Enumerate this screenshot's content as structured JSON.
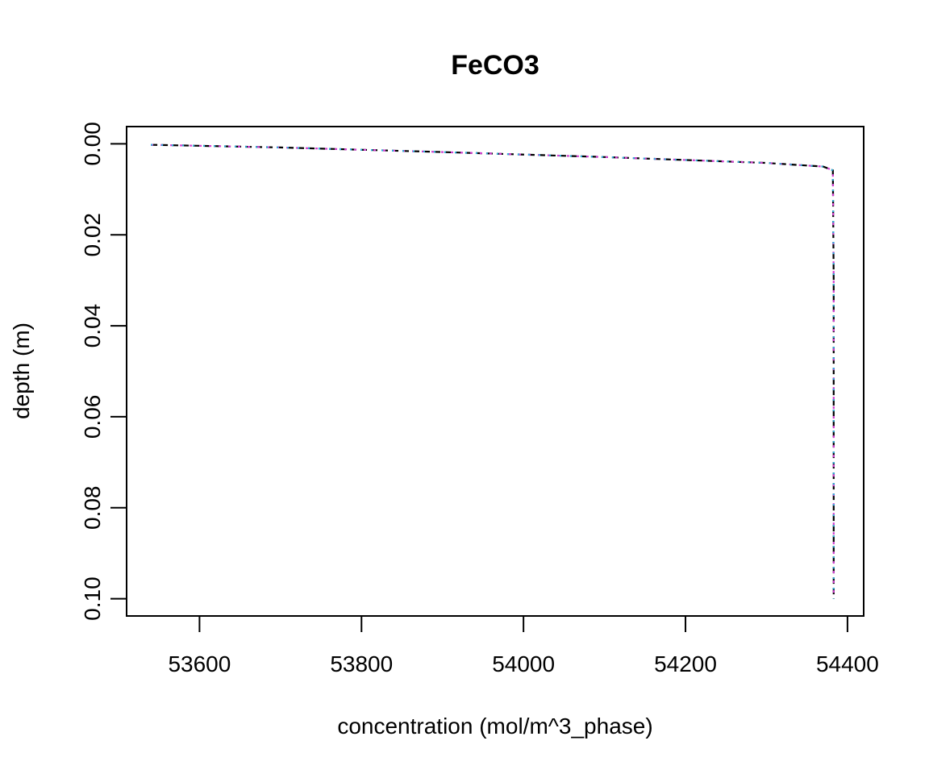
{
  "chart_data": {
    "type": "line",
    "title": "FeCO3",
    "xlabel": "concentration (mol/m^3_phase)",
    "ylabel": "depth (m)",
    "xlim": [
      53510,
      54420
    ],
    "ylim": [
      0.1038,
      -0.0038
    ],
    "y_reversed": true,
    "xticks": [
      53600,
      53800,
      54000,
      54200,
      54400
    ],
    "xtick_labels": [
      "53600",
      "53800",
      "54000",
      "54200",
      "54400"
    ],
    "yticks": [
      0.0,
      0.02,
      0.04,
      0.06,
      0.08,
      0.1
    ],
    "ytick_labels": [
      "0.00",
      "0.02",
      "0.04",
      "0.06",
      "0.08",
      "0.10"
    ],
    "grid": false,
    "series": [
      {
        "color": "#000000",
        "dash": "8,5",
        "x": [
          53540,
          53700,
          53900,
          54100,
          54300,
          54370,
          54382,
          54383,
          54383
        ],
        "y": [
          0.0002,
          0.0008,
          0.0018,
          0.0029,
          0.0042,
          0.005,
          0.0058,
          0.03,
          0.1
        ]
      },
      {
        "color": "#d03fd0",
        "dash": "3,9",
        "x": [
          53540,
          53700,
          53900,
          54100,
          54300,
          54370,
          54382,
          54383,
          54383
        ],
        "y": [
          0.0002,
          0.0008,
          0.0018,
          0.0029,
          0.0042,
          0.005,
          0.0058,
          0.03,
          0.1
        ]
      },
      {
        "color": "#2fb0e0",
        "dash": "2,11",
        "x": [
          53540,
          53700,
          53900,
          54100,
          54300,
          54370,
          54382,
          54383,
          54383
        ],
        "y": [
          0.0002,
          0.0008,
          0.0018,
          0.0029,
          0.0042,
          0.005,
          0.0058,
          0.03,
          0.1
        ]
      }
    ]
  }
}
